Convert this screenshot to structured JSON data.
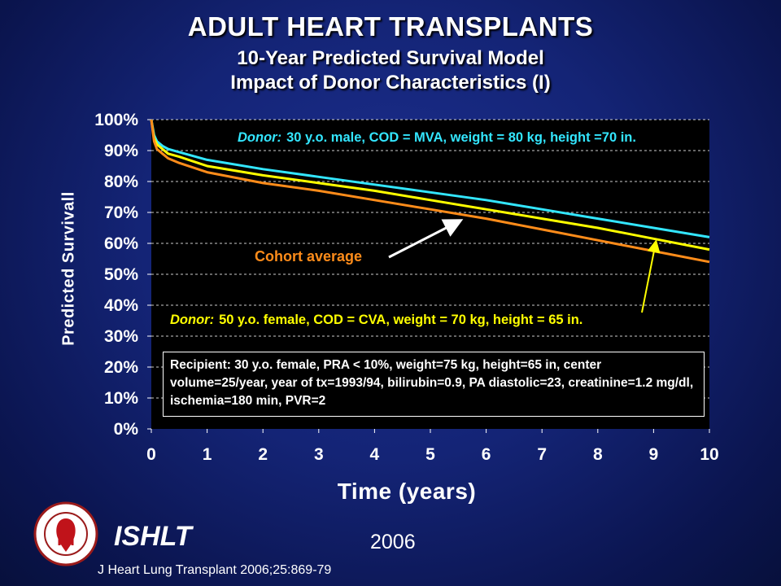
{
  "slide": {
    "title": "ADULT HEART TRANSPLANTS",
    "subtitle1": "10-Year Predicted Survival Model",
    "subtitle2": "Impact of Donor Characteristics (I)",
    "org": "ISHLT",
    "year": "2006",
    "citation": "J Heart Lung Transplant 2006;25:869-79"
  },
  "annotations": {
    "donor_prefix": "Donor:",
    "donor1_text": "30 y.o. male, COD = MVA, weight = 80 kg, height =70 in.",
    "donor2_text": "50 y.o. female, COD = CVA, weight = 70 kg, height = 65 in.",
    "cohort": "Cohort average",
    "recipient": "Recipient: 30 y.o. female, PRA < 10%, weight=75 kg, height=65 in, center volume=25/year, year of tx=1993/94, bilirubin=0.9, PA diastolic=23, creatinine=1.2 mg/dl, ischemia=180 min, PVR=2"
  },
  "colors": {
    "plot_bg": "#000000",
    "donor1": "#33e6ff",
    "cohort": "#ffff00",
    "donor2": "#ff8c1a",
    "grid": "#ffffff"
  },
  "chart_data": {
    "type": "line",
    "title": "",
    "xlabel": "Time (years)",
    "ylabel": "Predicted Survivall",
    "xlim": [
      0,
      10
    ],
    "ylim": [
      0,
      100
    ],
    "x_ticks": [
      "0",
      "1",
      "2",
      "3",
      "4",
      "5",
      "6",
      "7",
      "8",
      "9",
      "10"
    ],
    "y_ticks": [
      "0%",
      "10%",
      "20%",
      "30%",
      "40%",
      "50%",
      "60%",
      "70%",
      "80%",
      "90%",
      "100%"
    ],
    "grid": "horizontal dashed",
    "series": [
      {
        "name": "",
        "color_key": "donor1",
        "x": [
          0,
          0.05,
          0.1,
          0.2,
          0.3,
          0.5,
          1,
          2,
          3,
          4,
          5,
          6,
          7,
          8,
          9,
          10
        ],
        "y": [
          100,
          95,
          93,
          91.5,
          90.5,
          89.5,
          87,
          84,
          81.5,
          79,
          76.5,
          74,
          71,
          68,
          65,
          62
        ]
      },
      {
        "name": "",
        "color_key": "cohort",
        "x": [
          0,
          0.05,
          0.1,
          0.2,
          0.3,
          0.5,
          1,
          2,
          3,
          4,
          5,
          6,
          7,
          8,
          9,
          10
        ],
        "y": [
          100,
          94,
          92,
          90.5,
          89,
          88,
          85,
          82,
          79.5,
          77,
          74,
          71,
          68,
          65,
          61.5,
          58
        ]
      },
      {
        "name": "",
        "color_key": "donor2",
        "x": [
          0,
          0.05,
          0.1,
          0.2,
          0.3,
          0.5,
          1,
          2,
          3,
          4,
          5,
          6,
          7,
          8,
          9,
          10
        ],
        "y": [
          100,
          93,
          90.5,
          89,
          87.5,
          86,
          83,
          79.5,
          77,
          74,
          71,
          68,
          64.5,
          61,
          57.5,
          54
        ]
      }
    ]
  }
}
